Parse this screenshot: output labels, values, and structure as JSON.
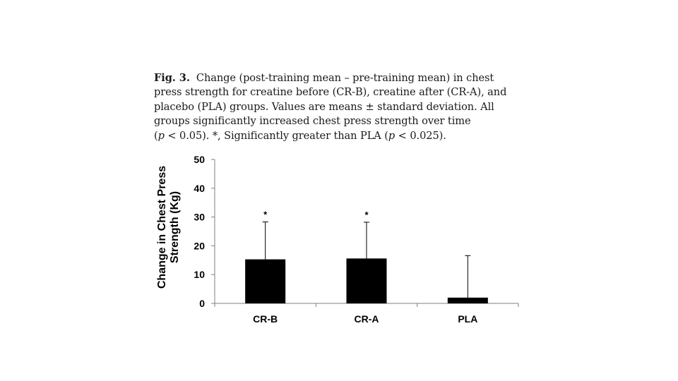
{
  "caption": {
    "fig_label": "Fig. 3.",
    "line1": "Change (post-training mean – pre-training mean) in chest",
    "line2": "press strength for creatine before (CR-B), creatine after (CR-A), and",
    "line3": "placebo (PLA) groups. Values are means ± standard deviation. All",
    "line4": "groups significantly increased chest press strength over time",
    "line5_a": "(",
    "line5_p1": "p",
    "line5_b": " < 0.05). *, Significantly greater than PLA (",
    "line5_p2": "p",
    "line5_c": " < 0.025)."
  },
  "chart_data": {
    "type": "bar",
    "title": "",
    "xlabel": "",
    "ylabel_lines": [
      "Change in Chest Press",
      "Strength (Kg)"
    ],
    "categories": [
      "CR-B",
      "CR-A",
      "PLA"
    ],
    "values": [
      15.3,
      15.6,
      2.0
    ],
    "error_upper": [
      13.0,
      12.6,
      14.6
    ],
    "significance": [
      "*",
      "*",
      ""
    ],
    "ylim": [
      0,
      50
    ],
    "yticks": [
      0,
      10,
      20,
      30,
      40,
      50
    ],
    "ytick_labels": [
      "0",
      "10",
      "20",
      "30",
      "40",
      "50"
    ],
    "bar_color": "#000000",
    "grid": false
  }
}
